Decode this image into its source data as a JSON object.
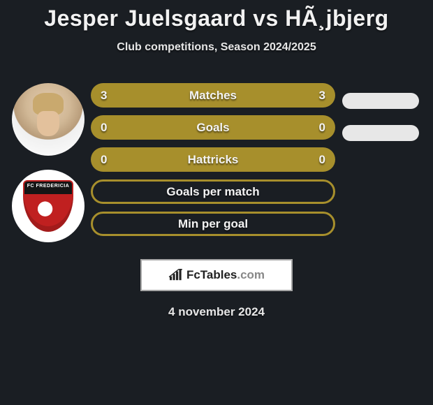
{
  "title": "Jesper Juelsgaard vs HÃ¸jbjerg",
  "subtitle": "Club competitions, Season 2024/2025",
  "date": "4 november 2024",
  "logo": {
    "brand_bold": "FcTables",
    "brand_suffix": ".com"
  },
  "colors": {
    "bar_fill": "#a78f2c",
    "bar_hollow_border": "#a78f2c",
    "pill_fill": "#e7e7e7",
    "background": "#1a1e23",
    "title_text": "#f2f2f2"
  },
  "badge": {
    "text": "FC FREDERICIA"
  },
  "bars": [
    {
      "label": "Matches",
      "left": "3",
      "right": "3",
      "style": "solid",
      "pill": true
    },
    {
      "label": "Goals",
      "left": "0",
      "right": "0",
      "style": "solid",
      "pill": true
    },
    {
      "label": "Hattricks",
      "left": "0",
      "right": "0",
      "style": "solid",
      "pill": false
    },
    {
      "label": "Goals per match",
      "left": "",
      "right": "",
      "style": "hollow",
      "pill": false
    },
    {
      "label": "Min per goal",
      "left": "",
      "right": "",
      "style": "hollow",
      "pill": false
    }
  ]
}
